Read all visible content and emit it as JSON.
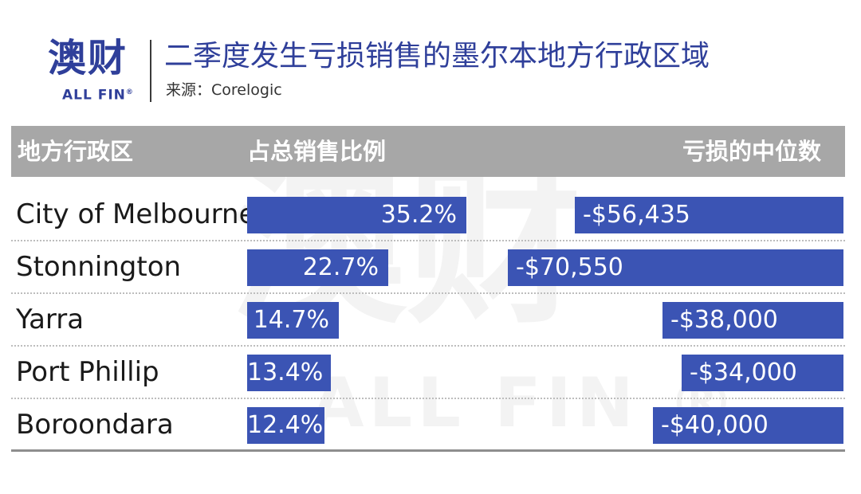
{
  "logo": {
    "cn": "澳财",
    "en": "ALL FIN",
    "reg": "®"
  },
  "title": "二季度发生亏损销售的墨尔本地方行政区域",
  "source": "来源：Corelogic",
  "watermark": {
    "cn": "澳财",
    "en": "ALL FIN ®"
  },
  "colors": {
    "bar": "#3b54b4",
    "header_band": "#a7a7a7",
    "brand": "#2f3f9a"
  },
  "chart_data": {
    "type": "table",
    "columns": [
      "地方行政区",
      "占总销售比例",
      "亏损的中位数"
    ],
    "rows": [
      {
        "region": "City of Melbourne",
        "share": 35.2,
        "share_label": "35.2%",
        "loss": -56435,
        "loss_label": "-$56,435"
      },
      {
        "region": "Stonnington",
        "share": 22.7,
        "share_label": "22.7%",
        "loss": -70550,
        "loss_label": "-$70,550"
      },
      {
        "region": "Yarra",
        "share": 14.7,
        "share_label": "14.7%",
        "loss": -38000,
        "loss_label": "-$38,000"
      },
      {
        "region": "Port Phillip",
        "share": 13.4,
        "share_label": "13.4%",
        "loss": -34000,
        "loss_label": "-$34,000"
      },
      {
        "region": "Boroondara",
        "share": 12.4,
        "share_label": "12.4%",
        "loss": -40000,
        "loss_label": "-$40,000"
      }
    ]
  }
}
